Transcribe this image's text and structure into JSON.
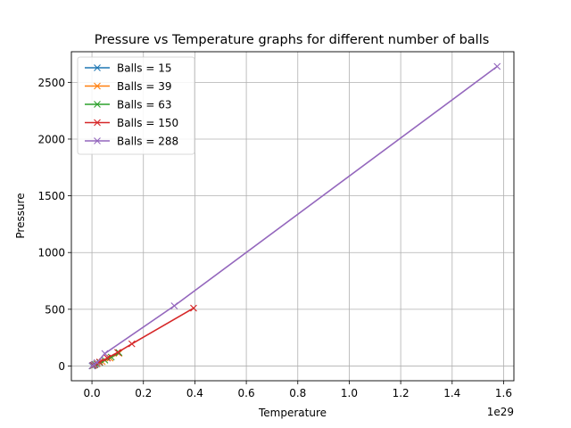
{
  "chart_data": {
    "type": "line",
    "title": "Pressure vs Temperature graphs for different number of balls",
    "xlabel": "Temperature",
    "ylabel": "Pressure",
    "x_offset_label": "1e29",
    "x_scale": 1e+29,
    "xlim": [
      -0.08,
      1.64
    ],
    "ylim": [
      -130,
      2770
    ],
    "x_ticks": [
      0.0,
      0.2,
      0.4,
      0.6,
      0.8,
      1.0,
      1.2,
      1.4,
      1.6
    ],
    "x_tick_labels": [
      "0.0",
      "0.2",
      "0.4",
      "0.6",
      "0.8",
      "1.0",
      "1.2",
      "1.4",
      "1.6"
    ],
    "y_ticks": [
      0,
      500,
      1000,
      1500,
      2000,
      2500
    ],
    "y_tick_labels": [
      "0",
      "500",
      "1000",
      "1500",
      "2000",
      "2500"
    ],
    "grid": true,
    "legend_position": "top-left",
    "marker": "x",
    "series": [
      {
        "name": "Balls = 15",
        "color": "#1f77b4",
        "x": [
          0.0005,
          0.002,
          0.006,
          0.011,
          0.017
        ],
        "y": [
          0.5,
          2,
          6,
          11,
          18
        ]
      },
      {
        "name": "Balls = 39",
        "color": "#ff7f0e",
        "x": [
          0.002,
          0.008,
          0.02,
          0.04,
          0.07,
          0.105
        ],
        "y": [
          2,
          8,
          20,
          38,
          70,
          112
        ]
      },
      {
        "name": "Balls = 63",
        "color": "#2ca02c",
        "x": [
          0.004,
          0.012,
          0.03,
          0.05,
          0.075,
          0.105
        ],
        "y": [
          4,
          12,
          30,
          52,
          78,
          118
        ]
      },
      {
        "name": "Balls = 150",
        "color": "#d62728",
        "x": [
          0.003,
          0.01,
          0.03,
          0.06,
          0.1,
          0.155,
          0.395
        ],
        "y": [
          4,
          12,
          35,
          70,
          120,
          195,
          510
        ]
      },
      {
        "name": "Balls = 288",
        "color": "#9467bd",
        "x": [
          0.002,
          0.008,
          0.02,
          0.05,
          0.32,
          1.575
        ],
        "y": [
          3,
          12,
          30,
          110,
          530,
          2640
        ]
      }
    ]
  }
}
